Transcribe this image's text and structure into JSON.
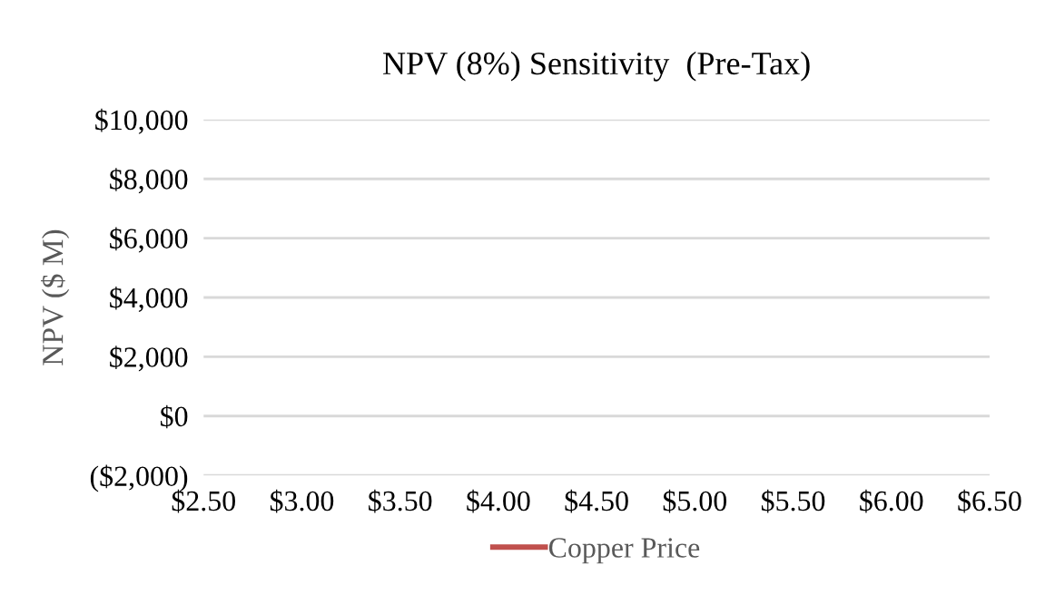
{
  "chart_data": {
    "type": "line",
    "title": "NPV (8%) Sensitivity  (Pre-Tax)",
    "ylabel": "NPV ($ M)",
    "categories": [
      "$2.50",
      "$3.00",
      "$3.50",
      "$4.00",
      "$4.50",
      "$5.00",
      "$5.50",
      "$6.00",
      "$6.50"
    ],
    "series": [
      {
        "name": "Copper Price",
        "color": "#c0504d",
        "values": [
          null,
          null,
          null,
          null,
          null,
          null,
          null,
          null,
          null
        ]
      }
    ],
    "ylim": [
      -2000,
      10000
    ],
    "yticks": [
      {
        "value": -2000,
        "label": "($2,000)"
      },
      {
        "value": 0,
        "label": "$0"
      },
      {
        "value": 2000,
        "label": "$2,000"
      },
      {
        "value": 4000,
        "label": "$4,000"
      },
      {
        "value": 6000,
        "label": "$6,000"
      },
      {
        "value": 8000,
        "label": "$8,000"
      },
      {
        "value": 10000,
        "label": "$10,000"
      }
    ],
    "grid": "y",
    "legend": "bottom"
  }
}
